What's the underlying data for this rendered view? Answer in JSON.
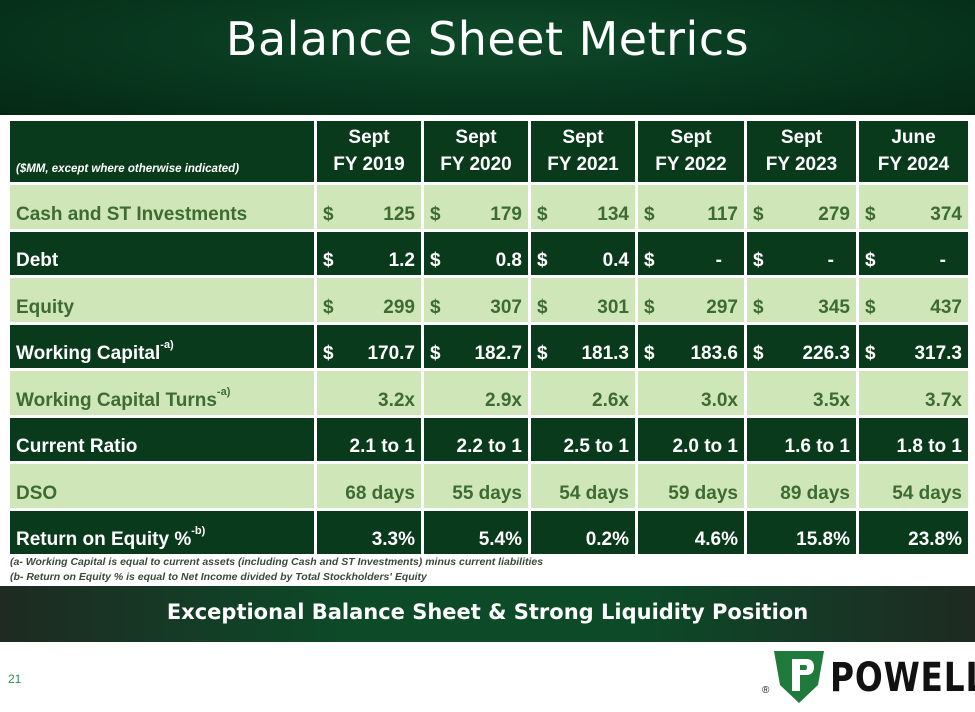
{
  "title": "Balance Sheet Metrics",
  "table": {
    "unit_note": "($MM, except where otherwise indicated)",
    "columns": [
      {
        "line1": "Sept",
        "line2": "FY 2019"
      },
      {
        "line1": "Sept",
        "line2": "FY 2020"
      },
      {
        "line1": "Sept",
        "line2": "FY 2021"
      },
      {
        "line1": "Sept",
        "line2": "FY 2022"
      },
      {
        "line1": "Sept",
        "line2": "FY 2023"
      },
      {
        "line1": "June",
        "line2": "FY 2024"
      }
    ],
    "rows": [
      {
        "label": "Cash and ST Investments",
        "sup": "",
        "currency": true,
        "values": [
          "125",
          "179",
          "134",
          "117",
          "279",
          "374"
        ]
      },
      {
        "label": "Debt",
        "sup": "",
        "currency": true,
        "values": [
          "1.2",
          "0.8",
          "0.4",
          "-",
          "-",
          "-"
        ]
      },
      {
        "label": "Equity",
        "sup": "",
        "currency": true,
        "values": [
          "299",
          "307",
          "301",
          "297",
          "345",
          "437"
        ]
      },
      {
        "label": "Working Capital",
        "sup": "-a)",
        "currency": true,
        "values": [
          "170.7",
          "182.7",
          "181.3",
          "183.6",
          "226.3",
          "317.3"
        ]
      },
      {
        "label": "Working Capital Turns",
        "sup": "-a)",
        "currency": false,
        "values": [
          "3.2x",
          "2.9x",
          "2.6x",
          "3.0x",
          "3.5x",
          "3.7x"
        ]
      },
      {
        "label": "Current Ratio",
        "sup": "",
        "currency": false,
        "values": [
          "2.1 to 1",
          "2.2 to 1",
          "2.5 to 1",
          "2.0 to 1",
          "1.6 to 1",
          "1.8 to 1"
        ]
      },
      {
        "label": "DSO",
        "sup": "",
        "currency": false,
        "values": [
          "68 days",
          "55 days",
          "54 days",
          "59 days",
          "89 days",
          "54 days"
        ]
      },
      {
        "label": "Return on Equity %",
        "sup": "-b)",
        "currency": false,
        "values": [
          "3.3%",
          "5.4%",
          "0.2%",
          "4.6%",
          "15.8%",
          "23.8%"
        ]
      }
    ],
    "currency_symbol": "$"
  },
  "footnotes": [
    "(a- Working Capital is equal to current assets (including Cash and ST Investments) minus current liabilities",
    "(b- Return on Equity % is equal to Net Income divided by Total Stockholders' Equity"
  ],
  "banner": "Exceptional Balance Sheet & Strong Liquidity Position",
  "page_number": "21",
  "logo": {
    "text": "POWELL",
    "mark": "P",
    "registered": "®"
  },
  "colors": {
    "dark_green": "#093a1b",
    "light_green": "#cfe7b8",
    "text_green": "#3d6b32"
  }
}
